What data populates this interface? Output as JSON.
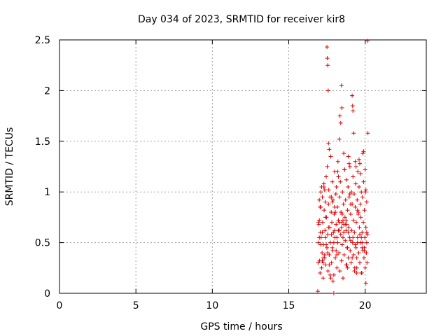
{
  "chart_data": {
    "type": "scatter",
    "title": "Day 034 of 2023, SRMTID for receiver kir8",
    "xlabel": "GPS time / hours",
    "ylabel": "SRMTID / TECUs",
    "xlim": [
      0,
      24
    ],
    "ylim": [
      0,
      2.5
    ],
    "xticks": [
      0,
      5,
      10,
      15,
      20
    ],
    "yticks": [
      0,
      0.5,
      1,
      1.5,
      2,
      2.5
    ],
    "xtick_labels": [
      "0",
      "5",
      "10",
      "15",
      "20"
    ],
    "ytick_labels": [
      "0",
      "0.5",
      "1",
      "1.5",
      "2",
      "2.5"
    ],
    "grid": true,
    "marker": "+",
    "color": "#e00000",
    "series": [
      {
        "name": "SRMTID",
        "x": [
          16.95,
          16.97,
          17.0,
          17.02,
          17.05,
          17.07,
          17.1,
          17.12,
          17.15,
          17.18,
          17.2,
          17.22,
          17.25,
          17.27,
          17.3,
          17.32,
          17.35,
          17.37,
          17.4,
          17.42,
          17.45,
          17.47,
          17.5,
          17.52,
          17.55,
          17.57,
          17.6,
          17.62,
          17.65,
          17.68,
          17.7,
          17.72,
          17.75,
          17.78,
          17.8,
          17.82,
          17.85,
          17.88,
          17.9,
          17.92,
          17.95,
          17.98,
          18.0,
          18.02,
          18.05,
          18.08,
          18.1,
          18.12,
          18.15,
          18.18,
          18.2,
          18.22,
          18.25,
          18.28,
          18.3,
          18.32,
          18.35,
          18.38,
          18.4,
          18.42,
          18.45,
          18.48,
          18.5,
          18.52,
          18.55,
          18.58,
          18.6,
          18.62,
          18.65,
          18.68,
          18.7,
          18.72,
          18.75,
          18.78,
          18.8,
          18.82,
          18.85,
          18.88,
          18.9,
          18.92,
          18.95,
          18.98,
          19.0,
          19.02,
          19.05,
          19.08,
          19.1,
          19.12,
          19.15,
          19.18,
          19.2,
          19.22,
          19.25,
          19.28,
          19.3,
          19.32,
          19.35,
          19.38,
          19.4,
          19.42,
          19.45,
          19.48,
          19.5,
          19.52,
          19.55,
          19.58,
          19.6,
          19.62,
          19.65,
          19.68,
          19.7,
          19.72,
          19.75,
          19.78,
          19.8,
          19.82,
          19.85,
          19.88,
          19.9,
          19.92,
          19.95,
          19.98,
          20.0,
          20.02,
          20.05,
          20.08,
          20.1,
          20.12,
          20.15,
          17.5,
          17.52,
          17.55,
          17.58,
          18.45,
          18.48,
          19.15,
          19.18,
          19.2,
          19.25,
          18.35,
          18.4,
          18.3,
          20.15,
          20.18,
          19.9,
          19.85,
          17.6,
          17.65,
          18.9,
          18.95,
          19.35,
          19.4,
          17.1,
          17.15,
          17.0,
          17.05,
          18.6,
          18.65,
          19.6,
          19.65,
          19.7,
          20.0,
          20.05,
          17.3,
          17.35,
          18.2,
          18.25,
          19.0,
          19.05,
          19.5,
          19.55,
          17.8,
          17.85,
          18.0,
          18.05,
          18.5,
          18.55,
          18.7,
          18.75,
          19.75,
          19.8,
          17.4,
          17.45,
          18.1,
          18.15,
          19.95,
          20.1,
          17.2,
          17.25,
          18.8,
          18.85,
          19.3,
          19.45,
          17.7,
          17.75,
          17.9,
          17.95,
          16.9,
          16.92,
          16.95,
          17.0,
          17.1,
          17.2,
          17.4,
          17.6,
          17.8,
          18.0,
          18.3,
          18.6,
          18.9,
          19.2,
          19.5,
          19.8,
          20.1,
          17.25,
          17.55,
          17.85,
          18.15,
          18.45,
          18.75,
          19.05,
          19.35,
          19.65,
          19.95,
          17.35,
          17.65,
          17.95,
          18.25,
          18.55,
          18.85,
          19.15,
          19.45,
          19.75,
          20.05
        ],
        "y": [
          0.5,
          0.68,
          0.72,
          0.32,
          0.2,
          0.6,
          0.85,
          0.55,
          0.25,
          0.4,
          0.95,
          0.7,
          0.15,
          0.48,
          1.05,
          0.82,
          0.35,
          0.62,
          0.9,
          0.28,
          1.15,
          0.75,
          0.45,
          1.25,
          0.58,
          0.22,
          0.88,
          1.02,
          0.38,
          0.65,
          0.95,
          0.5,
          1.35,
          0.8,
          0.3,
          0.7,
          1.1,
          0.42,
          0.92,
          0.6,
          0.18,
          0.78,
          1.2,
          0.55,
          0.35,
          0.98,
          0.68,
          1.05,
          0.25,
          0.85,
          0.5,
          1.3,
          0.72,
          0.4,
          0.62,
          0.95,
          0.22,
          1.1,
          0.58,
          0.8,
          0.32,
          0.7,
          0.48,
          1.0,
          0.15,
          0.88,
          0.6,
          0.38,
          1.22,
          0.75,
          0.52,
          0.92,
          0.28,
          1.12,
          0.68,
          0.45,
          0.82,
          1.05,
          0.35,
          0.65,
          0.95,
          0.55,
          1.25,
          0.42,
          0.78,
          0.3,
          1.0,
          0.62,
          0.88,
          0.5,
          1.15,
          0.72,
          0.38,
          0.98,
          0.6,
          0.25,
          0.85,
          1.08,
          0.45,
          0.7,
          0.35,
          0.92,
          0.55,
          1.2,
          0.8,
          0.4,
          1.05,
          0.65,
          0.3,
          0.88,
          0.5,
          0.75,
          1.0,
          0.2,
          0.6,
          0.95,
          0.42,
          0.7,
          1.1,
          0.35,
          0.82,
          0.55,
          0.25,
          1.0,
          0.65,
          0.4,
          0.9,
          0.3,
          0.58,
          2.43,
          2.32,
          2.25,
          2.0,
          2.05,
          1.83,
          1.95,
          1.85,
          1.8,
          1.58,
          1.75,
          1.68,
          1.52,
          2.49,
          1.58,
          1.4,
          1.38,
          1.48,
          1.42,
          1.35,
          1.28,
          1.3,
          1.25,
          1.0,
          1.05,
          0.92,
          0.85,
          1.38,
          1.22,
          1.32,
          1.28,
          1.18,
          1.22,
          1.02,
          1.08,
          1.02,
          1.2,
          1.15,
          0.98,
          0.88,
          0.82,
          0.78,
          0.95,
          0.9,
          0.85,
          0.8,
          0.78,
          0.72,
          0.68,
          0.62,
          0.55,
          0.5,
          0.55,
          0.48,
          0.42,
          0.38,
          0.45,
          0.5,
          0.32,
          0.3,
          0.28,
          0.25,
          0.22,
          0.2,
          0.18,
          0.15,
          0.12,
          0.0,
          0.02,
          0.3,
          0.7,
          0.55,
          0.48,
          0.6,
          0.75,
          0.65,
          0.58,
          0.62,
          0.7,
          0.68,
          0.6,
          0.55,
          0.5,
          0.45,
          0.6,
          0.35,
          0.4,
          0.45,
          0.55,
          0.65,
          0.72,
          0.52,
          0.48,
          0.58,
          0.42,
          0.38,
          0.28,
          0.5,
          0.62,
          0.55,
          0.45,
          0.35,
          0.25,
          0.2,
          0.1
        ]
      }
    ]
  }
}
